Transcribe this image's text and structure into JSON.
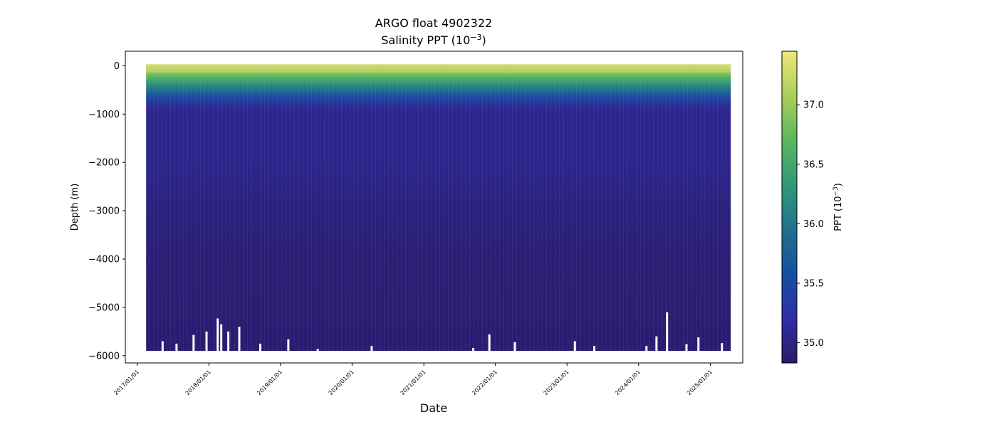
{
  "chart_data": {
    "type": "heatmap",
    "title_line1": "ARGO float 4902322",
    "title_line2_prefix": "Salinity PPT (10",
    "title_line2_exp": "−3",
    "title_line2_suffix": ")",
    "xlabel": "Date",
    "ylabel": "Depth (m)",
    "colorbar_label_prefix": "PPT (10",
    "colorbar_label_exp": "−3",
    "colorbar_label_suffix": ")",
    "xlim": [
      "2016-11-01",
      "2025-06-15"
    ],
    "ylim": [
      -6150,
      300
    ],
    "data_x_range": [
      "2017-02-15",
      "2025-04-15"
    ],
    "yticks": [
      {
        "value": 0,
        "label": "0"
      },
      {
        "value": -1000,
        "label": "−1000"
      },
      {
        "value": -2000,
        "label": "−2000"
      },
      {
        "value": -3000,
        "label": "−3000"
      },
      {
        "value": -4000,
        "label": "−4000"
      },
      {
        "value": -5000,
        "label": "−5000"
      },
      {
        "value": -6000,
        "label": "−6000"
      }
    ],
    "xticks": [
      {
        "value": "2017-01-01",
        "label": "2017/01/01"
      },
      {
        "value": "2018-01-01",
        "label": "2018/01/01"
      },
      {
        "value": "2019-01-01",
        "label": "2019/01/01"
      },
      {
        "value": "2020-01-01",
        "label": "2020/01/01"
      },
      {
        "value": "2021-01-01",
        "label": "2021/01/01"
      },
      {
        "value": "2022-01-01",
        "label": "2022/01/01"
      },
      {
        "value": "2023-01-01",
        "label": "2023/01/01"
      },
      {
        "value": "2024-01-01",
        "label": "2024/01/01"
      },
      {
        "value": "2025-01-01",
        "label": "2025/01/01"
      }
    ],
    "colorbar": {
      "range": [
        34.83,
        37.45
      ],
      "ticks": [
        {
          "value": 35.0,
          "label": "35.0"
        },
        {
          "value": 35.5,
          "label": "35.5"
        },
        {
          "value": 36.0,
          "label": "36.0"
        },
        {
          "value": 36.5,
          "label": "36.5"
        },
        {
          "value": 37.0,
          "label": "37.0"
        }
      ],
      "colormap": [
        "#2a1a6b",
        "#2e2fa3",
        "#14519e",
        "#236f8f",
        "#2f9a7a",
        "#5cb65e",
        "#a9cf5a",
        "#f1e67c"
      ]
    },
    "salinity_profile": [
      {
        "depth": 0,
        "salinity": 37.2
      },
      {
        "depth": -100,
        "salinity": 37.0
      },
      {
        "depth": -250,
        "salinity": 36.6
      },
      {
        "depth": -400,
        "salinity": 36.2
      },
      {
        "depth": -550,
        "salinity": 35.8
      },
      {
        "depth": -700,
        "salinity": 35.4
      },
      {
        "depth": -850,
        "salinity": 35.12
      },
      {
        "depth": -1000,
        "salinity": 35.05
      },
      {
        "depth": -2000,
        "salinity": 35.05
      },
      {
        "depth": -3000,
        "salinity": 34.95
      },
      {
        "depth": -4000,
        "salinity": 34.9
      },
      {
        "depth": -5000,
        "salinity": 34.88
      },
      {
        "depth": -5900,
        "salinity": 34.87
      }
    ],
    "shallow_profiles": [
      {
        "date": "2017-05-10",
        "max_depth": -5700
      },
      {
        "date": "2017-07-20",
        "max_depth": -5750
      },
      {
        "date": "2017-10-15",
        "max_depth": -5570
      },
      {
        "date": "2017-12-20",
        "max_depth": -5500
      },
      {
        "date": "2018-02-15",
        "max_depth": -5230
      },
      {
        "date": "2018-03-05",
        "max_depth": -5350
      },
      {
        "date": "2018-04-10",
        "max_depth": -5500
      },
      {
        "date": "2018-06-05",
        "max_depth": -5400
      },
      {
        "date": "2018-09-20",
        "max_depth": -5750
      },
      {
        "date": "2019-02-10",
        "max_depth": -5660
      },
      {
        "date": "2019-07-10",
        "max_depth": -5860
      },
      {
        "date": "2020-04-10",
        "max_depth": -5800
      },
      {
        "date": "2021-09-10",
        "max_depth": -5840
      },
      {
        "date": "2021-12-01",
        "max_depth": -5560
      },
      {
        "date": "2022-04-10",
        "max_depth": -5720
      },
      {
        "date": "2023-02-10",
        "max_depth": -5700
      },
      {
        "date": "2023-05-20",
        "max_depth": -5800
      },
      {
        "date": "2024-02-10",
        "max_depth": -5800
      },
      {
        "date": "2024-04-01",
        "max_depth": -5600
      },
      {
        "date": "2024-05-25",
        "max_depth": -5100
      },
      {
        "date": "2024-09-01",
        "max_depth": -5760
      },
      {
        "date": "2024-11-01",
        "max_depth": -5620
      },
      {
        "date": "2025-03-01",
        "max_depth": -5740
      }
    ]
  }
}
